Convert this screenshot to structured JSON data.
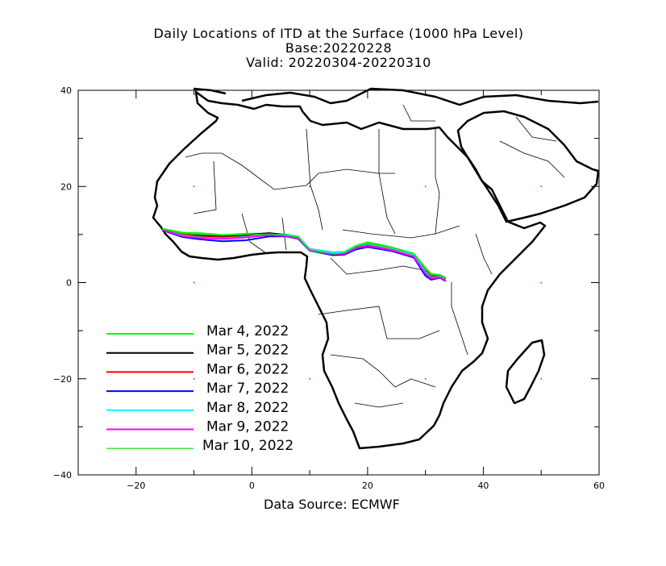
{
  "header": {
    "title": "Daily Locations of ITD at the Surface (1000 hPa Level)",
    "base": "Base:20220228",
    "valid": "Valid: 20220304-20220310"
  },
  "axes": {
    "lon_range": [
      -30,
      60
    ],
    "lat_range": [
      -40,
      40
    ],
    "x_ticks": [
      -20,
      0,
      20,
      40,
      60
    ],
    "y_ticks": [
      40,
      20,
      0,
      -20,
      -40
    ]
  },
  "legend": [
    {
      "label": "Mar 4, 2022",
      "color": "#00ff00"
    },
    {
      "label": "Mar 5, 2022",
      "color": "#000000"
    },
    {
      "label": "Mar 6, 2022",
      "color": "#ff0000"
    },
    {
      "label": "Mar 7, 2022",
      "color": "#0000ff"
    },
    {
      "label": "Mar 8, 2022",
      "color": "#00ffff"
    },
    {
      "label": "Mar 9, 2022",
      "color": "#ff00ff"
    },
    {
      "label": "Mar 10, 2022",
      "color": "#00dd00"
    }
  ],
  "itd_lines": [
    {
      "date": "Mar 4, 2022",
      "color": "#00ff00",
      "points": [
        [
          -15.5,
          11.2
        ],
        [
          -12,
          10.4
        ],
        [
          -9,
          10.3
        ],
        [
          -5,
          9.9
        ],
        [
          -1,
          10.2
        ],
        [
          3,
          10.2
        ],
        [
          6,
          10
        ],
        [
          8,
          9.6
        ],
        [
          10,
          7
        ],
        [
          14,
          6.3
        ],
        [
          16,
          6.4
        ],
        [
          18,
          7.7
        ],
        [
          20,
          8.4
        ],
        [
          24,
          7.4
        ],
        [
          28,
          6
        ],
        [
          30,
          3
        ],
        [
          31,
          1.8
        ],
        [
          32.5,
          1.6
        ],
        [
          33.5,
          1
        ]
      ]
    },
    {
      "date": "Mar 5, 2022",
      "color": "#000000",
      "points": [
        [
          -15.5,
          11
        ],
        [
          -12,
          10.1
        ],
        [
          -9,
          9.8
        ],
        [
          -5,
          9.6
        ],
        [
          -1,
          9.9
        ],
        [
          3,
          10.3
        ],
        [
          6,
          9.9
        ],
        [
          8,
          9.4
        ],
        [
          10,
          6.9
        ],
        [
          14,
          6.1
        ],
        [
          16,
          6.2
        ],
        [
          18,
          7.4
        ],
        [
          20,
          8
        ],
        [
          24,
          7.1
        ],
        [
          28,
          5.7
        ],
        [
          30,
          2.5
        ],
        [
          31,
          1.3
        ],
        [
          32.5,
          1.4
        ],
        [
          33.5,
          0.8
        ]
      ]
    },
    {
      "date": "Mar 6, 2022",
      "color": "#ff0000",
      "points": [
        [
          -15.5,
          11
        ],
        [
          -12,
          10
        ],
        [
          -9,
          9.6
        ],
        [
          -5,
          9.4
        ],
        [
          -1,
          9.6
        ],
        [
          3,
          10.1
        ],
        [
          6,
          9.8
        ],
        [
          8,
          9.3
        ],
        [
          10,
          6.8
        ],
        [
          14,
          6
        ],
        [
          16,
          6.1
        ],
        [
          18,
          7.3
        ],
        [
          20,
          7.9
        ],
        [
          24,
          7
        ],
        [
          28,
          5.6
        ],
        [
          30,
          2.4
        ],
        [
          31,
          1.2
        ],
        [
          32.5,
          1.3
        ],
        [
          33.5,
          0.7
        ]
      ]
    },
    {
      "date": "Mar 7, 2022",
      "color": "#0000ff",
      "points": [
        [
          -15.5,
          10.9
        ],
        [
          -12,
          9.5
        ],
        [
          -9,
          9
        ],
        [
          -5,
          8.6
        ],
        [
          -1,
          8.8
        ],
        [
          3,
          9.6
        ],
        [
          6,
          9.6
        ],
        [
          8,
          9.1
        ],
        [
          10,
          6.6
        ],
        [
          14,
          5.7
        ],
        [
          16,
          5.8
        ],
        [
          18,
          6.9
        ],
        [
          20,
          7.4
        ],
        [
          24,
          6.6
        ],
        [
          28,
          5.2
        ],
        [
          30,
          1.4
        ],
        [
          31,
          0.6
        ],
        [
          32.5,
          1
        ],
        [
          33.5,
          0.3
        ]
      ]
    },
    {
      "date": "Mar 8, 2022",
      "color": "#00ffff",
      "points": [
        [
          -15.5,
          11
        ],
        [
          -12,
          9.8
        ],
        [
          -9,
          9.4
        ],
        [
          -5,
          9.2
        ],
        [
          -1,
          9.5
        ],
        [
          3,
          10
        ],
        [
          6,
          9.9
        ],
        [
          8,
          9.5
        ],
        [
          10,
          6.9
        ],
        [
          14,
          6.2
        ],
        [
          16,
          6.3
        ],
        [
          18,
          7.6
        ],
        [
          20,
          8.1
        ],
        [
          24,
          7.2
        ],
        [
          28,
          5.8
        ],
        [
          30,
          2.2
        ],
        [
          31,
          1
        ],
        [
          32.5,
          1.2
        ],
        [
          33.5,
          0.5
        ]
      ]
    },
    {
      "date": "Mar 9, 2022",
      "color": "#ff00ff",
      "points": [
        [
          -15.5,
          11
        ],
        [
          -12,
          9.7
        ],
        [
          -9,
          9.3
        ],
        [
          -5,
          9.1
        ],
        [
          -1,
          9.4
        ],
        [
          3,
          9.9
        ],
        [
          6,
          9.7
        ],
        [
          8,
          9.2
        ],
        [
          10,
          6.7
        ],
        [
          14,
          5.9
        ],
        [
          16,
          6
        ],
        [
          18,
          7.2
        ],
        [
          20,
          7.7
        ],
        [
          24,
          6.8
        ],
        [
          28,
          5.4
        ],
        [
          30,
          1.9
        ],
        [
          31,
          0.9
        ],
        [
          32.5,
          1.1
        ],
        [
          33.5,
          0.4
        ]
      ]
    },
    {
      "date": "Mar 10, 2022",
      "color": "#00dd00",
      "points": [
        [
          -15.5,
          11.1
        ],
        [
          -12,
          10.2
        ],
        [
          -9,
          10
        ],
        [
          -5,
          9.8
        ],
        [
          -1,
          10
        ],
        [
          3,
          10.1
        ],
        [
          6,
          9.8
        ],
        [
          8,
          9.5
        ],
        [
          10,
          6.5
        ],
        [
          14,
          5.9
        ],
        [
          16,
          6.2
        ],
        [
          18,
          7.5
        ],
        [
          20,
          8.2
        ],
        [
          24,
          7.3
        ],
        [
          28,
          6
        ],
        [
          30,
          2.8
        ],
        [
          31,
          1.6
        ],
        [
          32.5,
          1.5
        ],
        [
          33.5,
          0.9
        ]
      ]
    }
  ],
  "grid_markers": [
    [
      -10,
      20
    ],
    [
      10,
      20
    ],
    [
      30,
      20
    ],
    [
      50,
      20
    ],
    [
      -10,
      0
    ],
    [
      50,
      0
    ],
    [
      -10,
      -20
    ],
    [
      10,
      -20
    ],
    [
      30,
      -20
    ],
    [
      50,
      -20
    ]
  ],
  "footer": {
    "source": "Data Source: ECMWF"
  }
}
